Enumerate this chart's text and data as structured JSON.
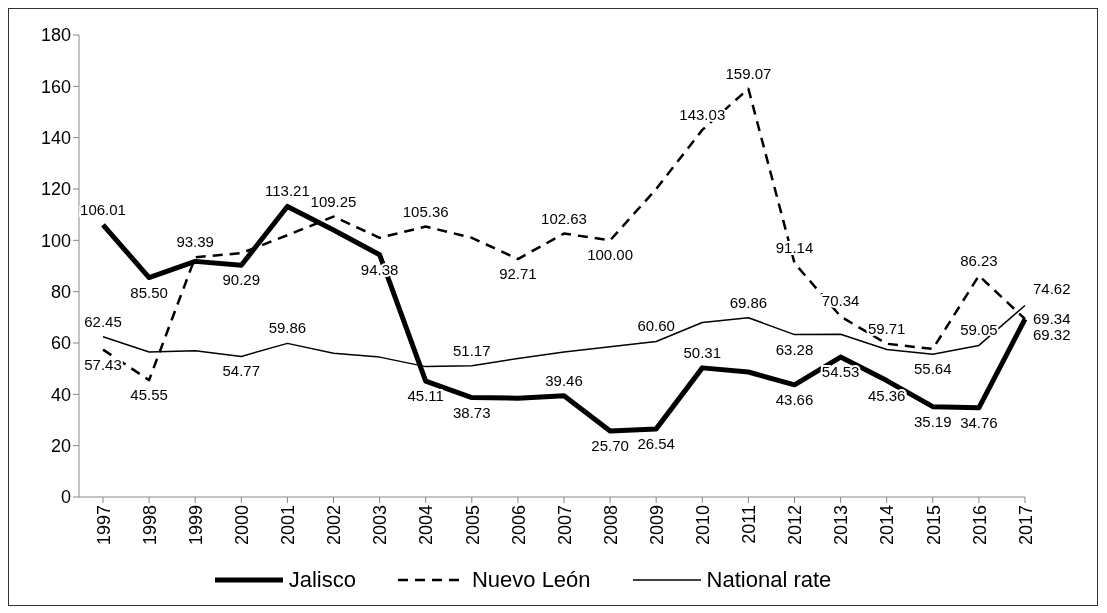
{
  "chart_data": {
    "type": "line",
    "categories": [
      "1997",
      "1998",
      "1999",
      "2000",
      "2001",
      "2002",
      "2003",
      "2004",
      "2005",
      "2006",
      "2007",
      "2008",
      "2009",
      "2010",
      "2011",
      "2012",
      "2013",
      "2014",
      "2015",
      "2016",
      "2017"
    ],
    "ylim": [
      0,
      180
    ],
    "yticks": [
      0,
      20,
      40,
      60,
      80,
      100,
      120,
      140,
      160,
      180
    ],
    "grid": false,
    "legend": "bottom",
    "marker": "none",
    "series": [
      {
        "name": "Jalisco",
        "color": "#000000",
        "line_style": "solid",
        "values": [
          106.01,
          85.5,
          91.8,
          90.29,
          113.21,
          104,
          94.38,
          45.11,
          38.73,
          38.5,
          39.46,
          25.7,
          26.54,
          50.31,
          48.7,
          43.66,
          54.53,
          45.36,
          35.19,
          34.76,
          69.32
        ],
        "value_labels": [
          "106.01",
          "85.50",
          null,
          "90.29",
          "113.21",
          null,
          "94.38",
          "45.11",
          "38.73",
          null,
          "39.46",
          "25.70",
          "26.54",
          "50.31",
          null,
          "43.66",
          "54.53",
          "45.36",
          "35.19",
          "34.76",
          "69.32"
        ]
      },
      {
        "name": "Nuevo León",
        "color": "#000000",
        "line_style": "dashed",
        "values": [
          57.43,
          45.55,
          93.39,
          95,
          102,
          109.25,
          101,
          105.36,
          101,
          92.71,
          102.63,
          100.0,
          120,
          143.03,
          159.07,
          91.14,
          70.34,
          59.71,
          57.7,
          86.23,
          69.34
        ],
        "value_labels": [
          "57.43",
          "45.55",
          "93.39",
          null,
          null,
          "109.25",
          null,
          "105.36",
          null,
          "92.71",
          "102.63",
          "100.00",
          null,
          "143.03",
          "159.07",
          "91.14",
          "70.34",
          "59.71",
          null,
          "86.23",
          "69.34"
        ]
      },
      {
        "name": "National rate",
        "color": "#000000",
        "line_style": "solid",
        "values": [
          62.45,
          56.5,
          57,
          54.77,
          59.86,
          56,
          54.5,
          50.8,
          51.17,
          54,
          56.5,
          58.5,
          60.6,
          68,
          69.86,
          63.28,
          63.4,
          57.5,
          55.64,
          59.05,
          74.62
        ],
        "value_labels": [
          "62.45",
          null,
          null,
          "54.77",
          "59.86",
          null,
          null,
          null,
          "51.17",
          null,
          null,
          null,
          "60.60",
          null,
          "69.86",
          "63.28",
          null,
          null,
          "55.64",
          "59.05",
          "74.62"
        ]
      }
    ]
  }
}
